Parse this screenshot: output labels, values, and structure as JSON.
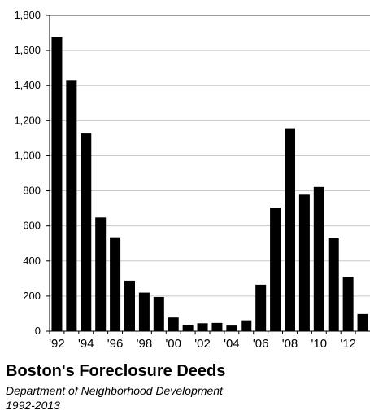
{
  "chart_data": {
    "type": "bar",
    "title": "Boston's Foreclosure Deeds",
    "subtitle": "Department of Neighborhood Development",
    "period": "1992-2013",
    "xlabel": "",
    "ylabel": "",
    "categories": [
      "'92",
      "'93",
      "'94",
      "'95",
      "'96",
      "'97",
      "'98",
      "'99",
      "'00",
      "'01",
      "'02",
      "'03",
      "'04",
      "'05",
      "'06",
      "'07",
      "'08",
      "'09",
      "'10",
      "'11",
      "'12",
      "'13"
    ],
    "x_tick_labels": [
      "'92",
      "",
      "'94",
      "",
      "'96",
      "",
      "'98",
      "",
      "'00",
      "",
      "'02",
      "",
      "'04",
      "",
      "'06",
      "",
      "'08",
      "",
      "'10",
      "",
      "'12",
      ""
    ],
    "values": [
      1678,
      1432,
      1127,
      648,
      535,
      288,
      220,
      195,
      78,
      36,
      45,
      47,
      32,
      62,
      265,
      705,
      1157,
      778,
      822,
      530,
      310,
      98
    ],
    "ylim": [
      0,
      1800
    ],
    "y_ticks": [
      0,
      200,
      400,
      600,
      800,
      1000,
      1200,
      1400,
      1600,
      1800
    ],
    "y_tick_labels": [
      "0",
      "200",
      "400",
      "600",
      "800",
      "1,000",
      "1,200",
      "1,400",
      "1,600",
      "1,800"
    ],
    "grid": true,
    "bar_color": "#000000",
    "grid_color": "#c8c8c8"
  }
}
